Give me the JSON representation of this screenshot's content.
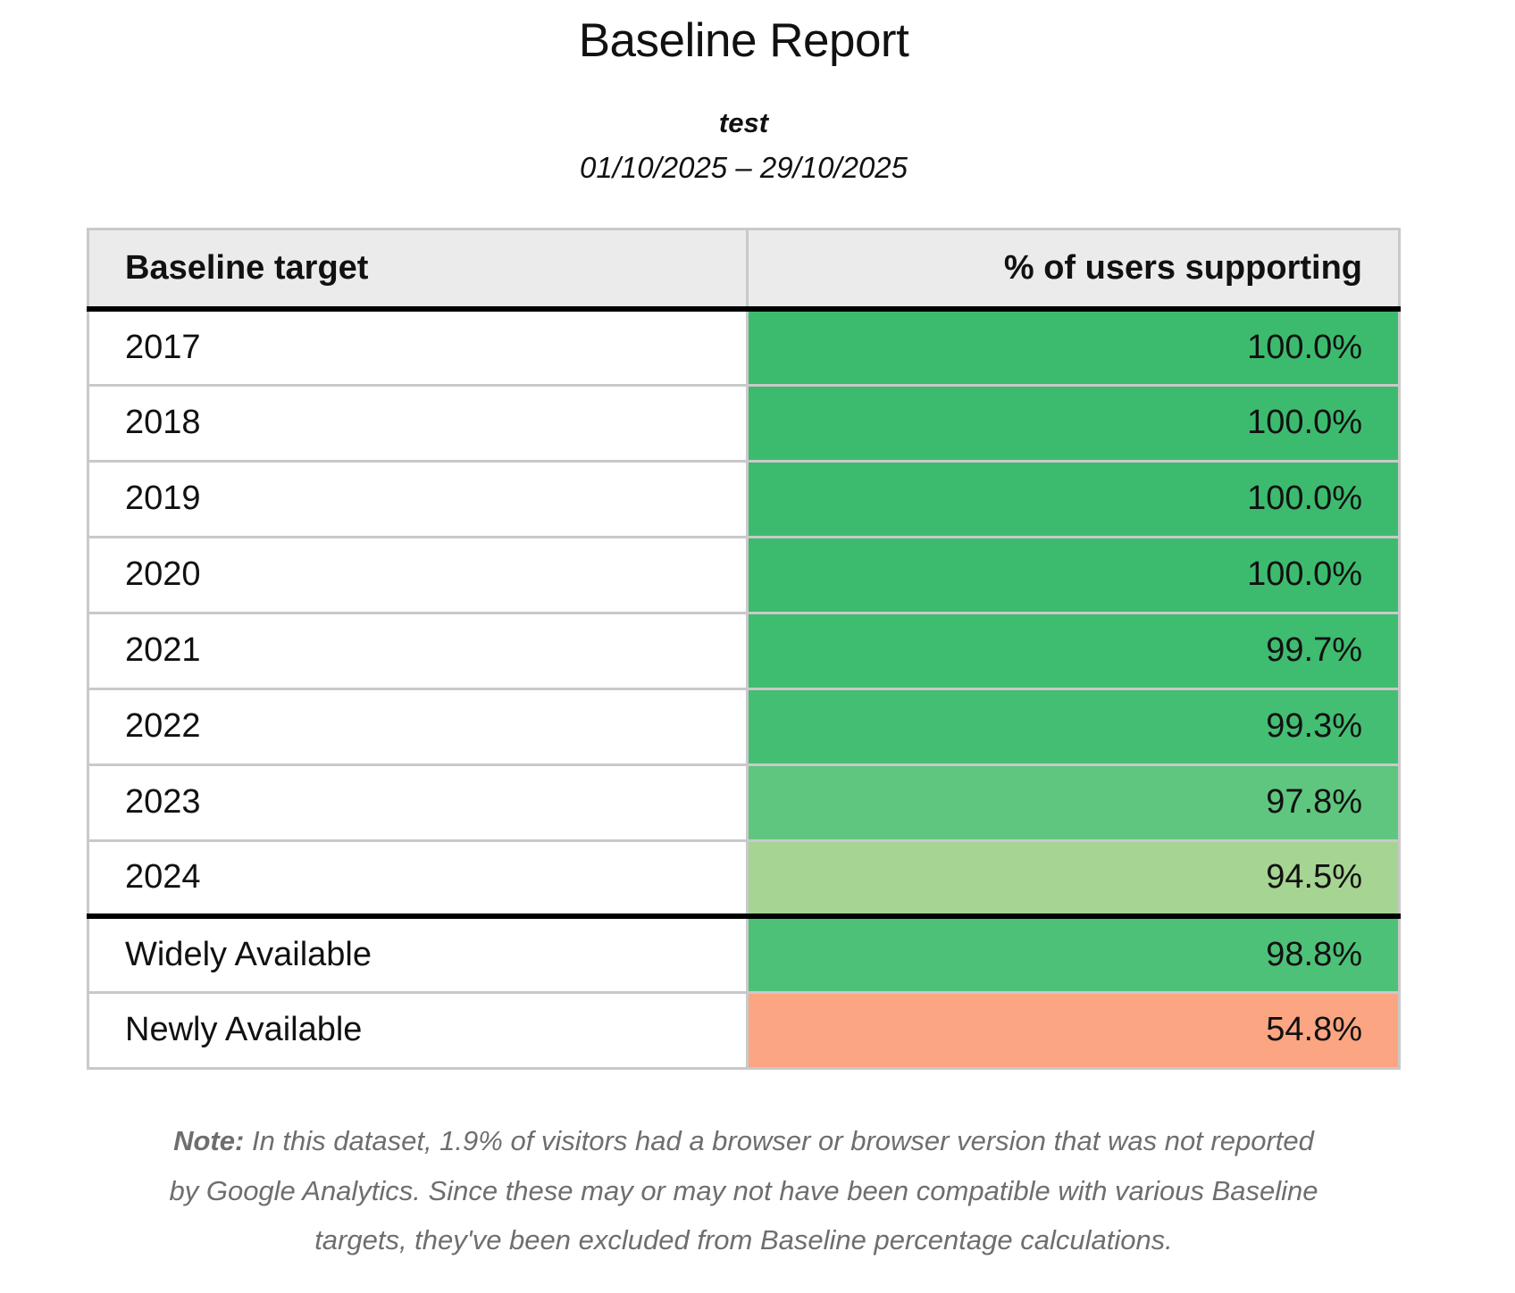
{
  "report": {
    "title": "Baseline Report",
    "subtitle": "test",
    "date_range": "01/10/2025 – 29/10/2025"
  },
  "table": {
    "columns": [
      "Baseline target",
      "% of users supporting"
    ],
    "rows": [
      {
        "label": "2017",
        "value": "100.0%",
        "color": "#3cbb6e"
      },
      {
        "label": "2018",
        "value": "100.0%",
        "color": "#3cbb6e"
      },
      {
        "label": "2019",
        "value": "100.0%",
        "color": "#3cbb6e"
      },
      {
        "label": "2020",
        "value": "100.0%",
        "color": "#3cbb6e"
      },
      {
        "label": "2021",
        "value": "99.7%",
        "color": "#3ebc70"
      },
      {
        "label": "2022",
        "value": "99.3%",
        "color": "#44be73"
      },
      {
        "label": "2023",
        "value": "97.8%",
        "color": "#5fc67f"
      },
      {
        "label": "2024",
        "value": "94.5%",
        "color": "#a6d492"
      },
      {
        "label": "Widely Available",
        "value": "98.8%",
        "color": "#4dc177",
        "black_divider_above": true
      },
      {
        "label": "Newly Available",
        "value": "54.8%",
        "color": "#fba583"
      }
    ]
  },
  "note": {
    "label": "Note:",
    "text": "In this dataset, 1.9% of visitors had a browser or browser version that was not reported by Google Analytics. Since these may or may not have been compatible with various Baseline targets, they've been excluded from Baseline percentage calculations."
  },
  "colors": {
    "header_background": "#ebebeb",
    "grid_border": "#c9c9c9",
    "strong_divider": "#000000",
    "note_text": "#6e6e6e",
    "green_full": "#3cbb6e",
    "green_light": "#a6d492",
    "salmon_low": "#fba583"
  },
  "chart_data": {
    "type": "table",
    "title": "Baseline Report",
    "subtitle": "test",
    "date_range": "01/10/2025 – 29/10/2025",
    "columns": [
      "Baseline target",
      "% of users supporting"
    ],
    "categories": [
      "2017",
      "2018",
      "2019",
      "2020",
      "2021",
      "2022",
      "2023",
      "2024",
      "Widely Available",
      "Newly Available"
    ],
    "values": [
      100.0,
      100.0,
      100.0,
      100.0,
      99.7,
      99.3,
      97.8,
      94.5,
      98.8,
      54.8
    ],
    "excluded_visitors_pct": 1.9,
    "value_color_encoding": "cell background shades from green (high %) to salmon (low %)"
  }
}
